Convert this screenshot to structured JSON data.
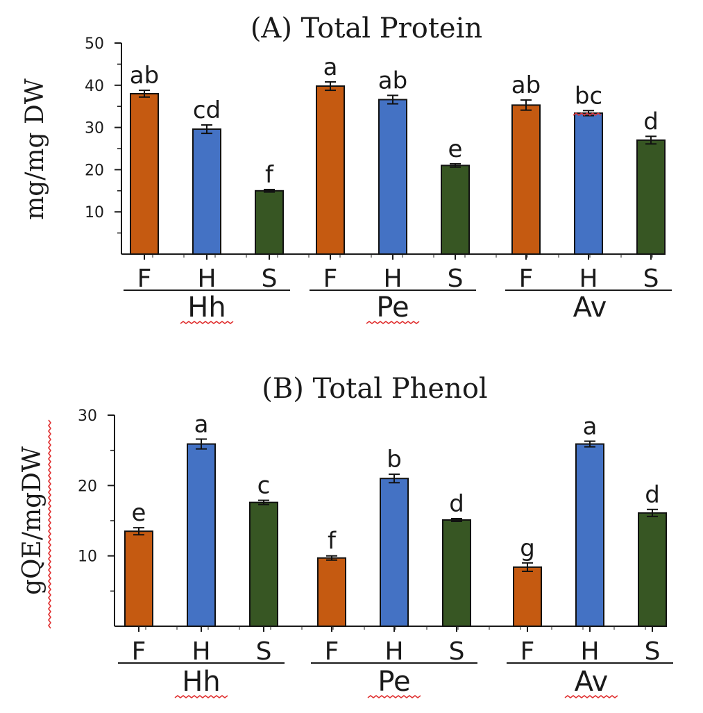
{
  "colors": {
    "F": "#c55a11",
    "H": "#4472c4",
    "S": "#375623",
    "axis": "#1a1a1a",
    "squiggle": "#e03030"
  },
  "chart_data": [
    {
      "type": "bar",
      "title": "(A)  Total Protein",
      "ylabel": "mg/mg DW",
      "xlabel": "",
      "ylim": [
        0,
        50
      ],
      "yticks": [
        "50",
        "40",
        "30",
        "20",
        "10"
      ],
      "groups": [
        "Hh",
        "Pe",
        "Av"
      ],
      "categories": [
        "F",
        "H",
        "S"
      ],
      "series": [
        {
          "name": "F",
          "values": [
            38,
            39.8,
            35.3
          ],
          "errors": [
            0.8,
            1.0,
            1.2
          ],
          "letters": [
            "ab",
            "a",
            "ab"
          ]
        },
        {
          "name": "H",
          "values": [
            29.6,
            36.6,
            33.4
          ],
          "errors": [
            1.0,
            1.0,
            0.6
          ],
          "letters": [
            "cd",
            "ab",
            "bc"
          ]
        },
        {
          "name": "S",
          "values": [
            15.0,
            21.0,
            27.0
          ],
          "errors": [
            0.3,
            0.4,
            0.9
          ],
          "letters": [
            "f",
            "e",
            "d"
          ]
        }
      ]
    },
    {
      "type": "bar",
      "title": "(B)  Total Phenol",
      "ylabel": "gQE/mgDW",
      "xlabel": "",
      "ylim": [
        0,
        30
      ],
      "yticks": [
        "30",
        "20",
        "10"
      ],
      "groups": [
        "Hh",
        "Pe",
        "Av"
      ],
      "categories": [
        "F",
        "H",
        "S"
      ],
      "series": [
        {
          "name": "F",
          "values": [
            13.5,
            9.7,
            8.4
          ],
          "errors": [
            0.5,
            0.3,
            0.6
          ],
          "letters": [
            "e",
            "f",
            "g"
          ]
        },
        {
          "name": "H",
          "values": [
            25.9,
            21.0,
            25.9
          ],
          "errors": [
            0.7,
            0.6,
            0.4
          ],
          "letters": [
            "a",
            "b",
            "a"
          ]
        },
        {
          "name": "S",
          "values": [
            17.6,
            15.1,
            16.1
          ],
          "errors": [
            0.3,
            0.2,
            0.5
          ],
          "letters": [
            "c",
            "d",
            "d"
          ]
        }
      ]
    }
  ]
}
